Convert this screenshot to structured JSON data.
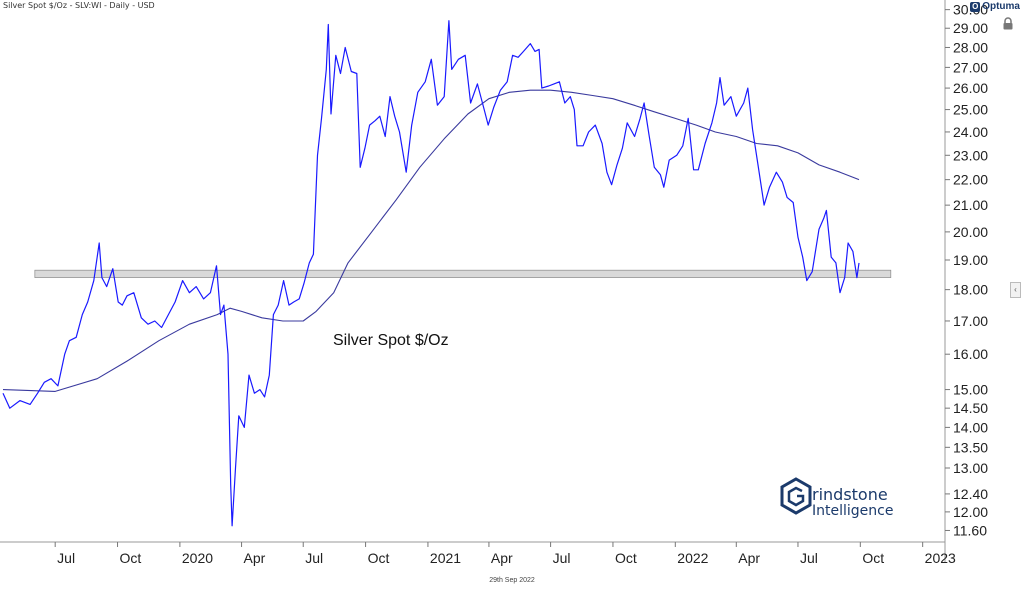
{
  "header": {
    "title": "Silver Spot $/Oz - SLV:WI - Daily - USD"
  },
  "brand": {
    "name": "Optuma",
    "mark": "O"
  },
  "footer": {
    "date": "29th Sep 2022"
  },
  "watermark": {
    "line1": "rindstone",
    "line2": "Intelligence"
  },
  "chart_data": {
    "type": "line",
    "title": "Silver Spot $/Oz",
    "y_scale": "log",
    "ylim": [
      11.4,
      30.2
    ],
    "y_ticks": [
      11.6,
      12.0,
      12.4,
      13.0,
      13.5,
      14.0,
      14.5,
      15.0,
      16.0,
      17.0,
      18.0,
      19.0,
      20.0,
      21.0,
      22.0,
      23.0,
      24.0,
      25.0,
      26.0,
      27.0,
      28.0,
      29.0,
      30.0
    ],
    "x_range": [
      "2019-04-15",
      "2023-01-31"
    ],
    "x_ticks": [
      {
        "date": "2019-07-01",
        "label": "Jul"
      },
      {
        "date": "2019-10-01",
        "label": "Oct"
      },
      {
        "date": "2020-01-01",
        "label": "2020"
      },
      {
        "date": "2020-04-01",
        "label": "Apr"
      },
      {
        "date": "2020-07-01",
        "label": "Jul"
      },
      {
        "date": "2020-10-01",
        "label": "Oct"
      },
      {
        "date": "2021-01-01",
        "label": "2021"
      },
      {
        "date": "2021-04-01",
        "label": "Apr"
      },
      {
        "date": "2021-07-01",
        "label": "Jul"
      },
      {
        "date": "2021-10-01",
        "label": "Oct"
      },
      {
        "date": "2022-01-01",
        "label": "2022"
      },
      {
        "date": "2022-04-01",
        "label": "Apr"
      },
      {
        "date": "2022-07-01",
        "label": "Jul"
      },
      {
        "date": "2022-10-01",
        "label": "Oct"
      },
      {
        "date": "2023-01-01",
        "label": "2023"
      }
    ],
    "support_band": {
      "from": 18.4,
      "to": 18.65,
      "start": "2019-06-01",
      "end": "2022-11-15",
      "color": "#d9d9d9"
    },
    "series": [
      {
        "color": "#1a1aff",
        "points": [
          [
            "2019-04-15",
            14.9
          ],
          [
            "2019-04-25",
            14.5
          ],
          [
            "2019-05-10",
            14.7
          ],
          [
            "2019-05-25",
            14.6
          ],
          [
            "2019-06-05",
            14.9
          ],
          [
            "2019-06-15",
            15.2
          ],
          [
            "2019-06-25",
            15.3
          ],
          [
            "2019-07-05",
            15.1
          ],
          [
            "2019-07-15",
            16.0
          ],
          [
            "2019-07-22",
            16.4
          ],
          [
            "2019-08-01",
            16.5
          ],
          [
            "2019-08-10",
            17.2
          ],
          [
            "2019-08-18",
            17.6
          ],
          [
            "2019-08-27",
            18.3
          ],
          [
            "2019-09-04",
            19.6
          ],
          [
            "2019-09-08",
            18.4
          ],
          [
            "2019-09-15",
            18.1
          ],
          [
            "2019-09-24",
            18.7
          ],
          [
            "2019-10-02",
            17.6
          ],
          [
            "2019-10-08",
            17.5
          ],
          [
            "2019-10-15",
            17.8
          ],
          [
            "2019-10-25",
            17.9
          ],
          [
            "2019-11-05",
            17.1
          ],
          [
            "2019-11-15",
            16.9
          ],
          [
            "2019-11-25",
            17.0
          ],
          [
            "2019-12-05",
            16.8
          ],
          [
            "2019-12-15",
            17.2
          ],
          [
            "2019-12-25",
            17.6
          ],
          [
            "2020-01-05",
            18.3
          ],
          [
            "2020-01-15",
            17.9
          ],
          [
            "2020-01-25",
            18.1
          ],
          [
            "2020-02-05",
            17.7
          ],
          [
            "2020-02-15",
            17.9
          ],
          [
            "2020-02-24",
            18.8
          ],
          [
            "2020-03-01",
            17.2
          ],
          [
            "2020-03-06",
            17.5
          ],
          [
            "2020-03-12",
            16.0
          ],
          [
            "2020-03-16",
            12.6
          ],
          [
            "2020-03-18",
            11.7
          ],
          [
            "2020-03-23",
            13.0
          ],
          [
            "2020-03-28",
            14.3
          ],
          [
            "2020-04-05",
            14.0
          ],
          [
            "2020-04-12",
            15.4
          ],
          [
            "2020-04-20",
            14.9
          ],
          [
            "2020-04-28",
            15.0
          ],
          [
            "2020-05-05",
            14.8
          ],
          [
            "2020-05-12",
            15.4
          ],
          [
            "2020-05-18",
            17.2
          ],
          [
            "2020-05-25",
            17.5
          ],
          [
            "2020-06-02",
            18.3
          ],
          [
            "2020-06-10",
            17.5
          ],
          [
            "2020-06-17",
            17.6
          ],
          [
            "2020-06-25",
            17.7
          ],
          [
            "2020-07-02",
            18.2
          ],
          [
            "2020-07-10",
            18.9
          ],
          [
            "2020-07-16",
            19.2
          ],
          [
            "2020-07-22",
            23.0
          ],
          [
            "2020-07-28",
            24.6
          ],
          [
            "2020-08-04",
            26.9
          ],
          [
            "2020-08-07",
            29.2
          ],
          [
            "2020-08-11",
            24.8
          ],
          [
            "2020-08-18",
            27.6
          ],
          [
            "2020-08-25",
            26.7
          ],
          [
            "2020-09-01",
            28.0
          ],
          [
            "2020-09-10",
            26.8
          ],
          [
            "2020-09-18",
            26.7
          ],
          [
            "2020-09-23",
            22.5
          ],
          [
            "2020-09-30",
            23.3
          ],
          [
            "2020-10-07",
            24.3
          ],
          [
            "2020-10-15",
            24.5
          ],
          [
            "2020-10-22",
            24.7
          ],
          [
            "2020-10-30",
            23.8
          ],
          [
            "2020-11-06",
            25.6
          ],
          [
            "2020-11-13",
            24.7
          ],
          [
            "2020-11-20",
            24.0
          ],
          [
            "2020-11-30",
            22.3
          ],
          [
            "2020-12-08",
            24.3
          ],
          [
            "2020-12-17",
            25.8
          ],
          [
            "2020-12-28",
            26.3
          ],
          [
            "2021-01-06",
            27.4
          ],
          [
            "2021-01-15",
            25.2
          ],
          [
            "2021-01-25",
            25.6
          ],
          [
            "2021-02-01",
            29.4
          ],
          [
            "2021-02-05",
            26.9
          ],
          [
            "2021-02-15",
            27.4
          ],
          [
            "2021-02-25",
            27.6
          ],
          [
            "2021-03-05",
            25.3
          ],
          [
            "2021-03-15",
            26.2
          ],
          [
            "2021-03-25",
            25.0
          ],
          [
            "2021-03-31",
            24.3
          ],
          [
            "2021-04-08",
            25.1
          ],
          [
            "2021-04-18",
            25.9
          ],
          [
            "2021-04-28",
            26.3
          ],
          [
            "2021-05-06",
            27.6
          ],
          [
            "2021-05-14",
            27.5
          ],
          [
            "2021-05-22",
            27.8
          ],
          [
            "2021-06-01",
            28.2
          ],
          [
            "2021-06-08",
            27.8
          ],
          [
            "2021-06-14",
            27.9
          ],
          [
            "2021-06-18",
            26.0
          ],
          [
            "2021-06-28",
            26.1
          ],
          [
            "2021-07-06",
            26.2
          ],
          [
            "2021-07-14",
            26.3
          ],
          [
            "2021-07-22",
            25.3
          ],
          [
            "2021-07-30",
            25.6
          ],
          [
            "2021-08-05",
            25.0
          ],
          [
            "2021-08-09",
            23.4
          ],
          [
            "2021-08-18",
            23.4
          ],
          [
            "2021-08-26",
            24.0
          ],
          [
            "2021-09-05",
            24.3
          ],
          [
            "2021-09-15",
            23.5
          ],
          [
            "2021-09-22",
            22.3
          ],
          [
            "2021-09-29",
            21.8
          ],
          [
            "2021-10-07",
            22.6
          ],
          [
            "2021-10-15",
            23.3
          ],
          [
            "2021-10-22",
            24.4
          ],
          [
            "2021-11-02",
            23.8
          ],
          [
            "2021-11-10",
            24.6
          ],
          [
            "2021-11-16",
            25.3
          ],
          [
            "2021-11-23",
            23.9
          ],
          [
            "2021-12-01",
            22.5
          ],
          [
            "2021-12-10",
            22.2
          ],
          [
            "2021-12-15",
            21.7
          ],
          [
            "2021-12-23",
            22.8
          ],
          [
            "2022-01-03",
            23.0
          ],
          [
            "2022-01-12",
            23.4
          ],
          [
            "2022-01-20",
            24.6
          ],
          [
            "2022-01-28",
            22.4
          ],
          [
            "2022-02-04",
            22.4
          ],
          [
            "2022-02-14",
            23.5
          ],
          [
            "2022-02-24",
            24.4
          ],
          [
            "2022-03-03",
            25.3
          ],
          [
            "2022-03-08",
            26.5
          ],
          [
            "2022-03-14",
            25.2
          ],
          [
            "2022-03-24",
            25.6
          ],
          [
            "2022-04-01",
            24.7
          ],
          [
            "2022-04-12",
            25.3
          ],
          [
            "2022-04-18",
            26.0
          ],
          [
            "2022-04-25",
            24.1
          ],
          [
            "2022-05-03",
            22.6
          ],
          [
            "2022-05-12",
            21.0
          ],
          [
            "2022-05-20",
            21.7
          ],
          [
            "2022-05-30",
            22.3
          ],
          [
            "2022-06-08",
            21.9
          ],
          [
            "2022-06-15",
            21.3
          ],
          [
            "2022-06-24",
            21.1
          ],
          [
            "2022-07-01",
            19.8
          ],
          [
            "2022-07-08",
            19.1
          ],
          [
            "2022-07-14",
            18.3
          ],
          [
            "2022-07-22",
            18.6
          ],
          [
            "2022-08-01",
            20.1
          ],
          [
            "2022-08-08",
            20.5
          ],
          [
            "2022-08-12",
            20.8
          ],
          [
            "2022-08-19",
            19.1
          ],
          [
            "2022-08-26",
            18.9
          ],
          [
            "2022-09-01",
            17.9
          ],
          [
            "2022-09-08",
            18.4
          ],
          [
            "2022-09-13",
            19.6
          ],
          [
            "2022-09-20",
            19.3
          ],
          [
            "2022-09-26",
            18.4
          ],
          [
            "2022-09-29",
            18.9
          ]
        ]
      },
      {
        "color": "#3a3a9e",
        "points": [
          [
            "2019-04-15",
            15.0
          ],
          [
            "2019-07-01",
            14.95
          ],
          [
            "2019-09-01",
            15.3
          ],
          [
            "2019-10-15",
            15.8
          ],
          [
            "2019-12-01",
            16.4
          ],
          [
            "2020-01-15",
            16.9
          ],
          [
            "2020-02-25",
            17.2
          ],
          [
            "2020-03-15",
            17.4
          ],
          [
            "2020-04-01",
            17.3
          ],
          [
            "2020-05-01",
            17.1
          ],
          [
            "2020-06-01",
            17.0
          ],
          [
            "2020-07-01",
            17.0
          ],
          [
            "2020-07-20",
            17.3
          ],
          [
            "2020-08-15",
            17.9
          ],
          [
            "2020-09-05",
            18.9
          ],
          [
            "2020-10-10",
            20.0
          ],
          [
            "2020-11-15",
            21.2
          ],
          [
            "2020-12-20",
            22.5
          ],
          [
            "2021-01-25",
            23.7
          ],
          [
            "2021-03-01",
            24.8
          ],
          [
            "2021-04-01",
            25.5
          ],
          [
            "2021-05-01",
            25.8
          ],
          [
            "2021-06-01",
            25.9
          ],
          [
            "2021-07-01",
            25.9
          ],
          [
            "2021-08-01",
            25.8
          ],
          [
            "2021-09-01",
            25.65
          ],
          [
            "2021-10-01",
            25.5
          ],
          [
            "2021-11-01",
            25.2
          ],
          [
            "2021-12-01",
            24.9
          ],
          [
            "2022-01-01",
            24.6
          ],
          [
            "2022-02-01",
            24.3
          ],
          [
            "2022-03-01",
            24.0
          ],
          [
            "2022-04-01",
            23.8
          ],
          [
            "2022-05-01",
            23.5
          ],
          [
            "2022-06-01",
            23.4
          ],
          [
            "2022-07-01",
            23.1
          ],
          [
            "2022-08-01",
            22.6
          ],
          [
            "2022-09-01",
            22.3
          ],
          [
            "2022-09-29",
            22.0
          ]
        ]
      }
    ]
  }
}
